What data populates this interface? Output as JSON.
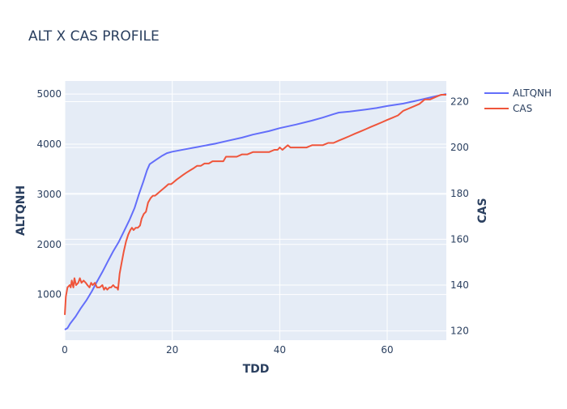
{
  "chart_data": {
    "type": "line",
    "title": "ALT X CAS PROFILE",
    "xlabel": "TDD",
    "ylabel": "ALTQNH",
    "y2label": "CAS",
    "xlim": [
      0,
      71
    ],
    "ylim": [
      90,
      5260
    ],
    "y2lim": [
      116,
      229
    ],
    "x_ticks": [
      "0",
      "20",
      "40",
      "60"
    ],
    "y_ticks": [
      "1000",
      "2000",
      "3000",
      "4000",
      "5000"
    ],
    "y2_ticks": [
      "120",
      "140",
      "160",
      "180",
      "200",
      "220"
    ],
    "grid": true,
    "legend_position": "top-right",
    "series": [
      {
        "name": "ALTQNH",
        "axis": "y",
        "color": "#636efa",
        "points": [
          [
            0,
            300
          ],
          [
            0.5,
            330
          ],
          [
            1,
            420
          ],
          [
            2,
            560
          ],
          [
            3,
            730
          ],
          [
            4,
            880
          ],
          [
            5,
            1060
          ],
          [
            6,
            1260
          ],
          [
            7,
            1450
          ],
          [
            8,
            1660
          ],
          [
            9,
            1860
          ],
          [
            10,
            2040
          ],
          [
            11,
            2260
          ],
          [
            12,
            2480
          ],
          [
            13,
            2730
          ],
          [
            13.8,
            3000
          ],
          [
            14.6,
            3250
          ],
          [
            15.3,
            3480
          ],
          [
            15.8,
            3600
          ],
          [
            17,
            3690
          ],
          [
            18,
            3760
          ],
          [
            19,
            3820
          ],
          [
            20,
            3850
          ],
          [
            22,
            3890
          ],
          [
            25,
            3950
          ],
          [
            28,
            4010
          ],
          [
            30,
            4060
          ],
          [
            33,
            4130
          ],
          [
            35,
            4190
          ],
          [
            38,
            4260
          ],
          [
            40,
            4320
          ],
          [
            43,
            4390
          ],
          [
            46,
            4470
          ],
          [
            48,
            4530
          ],
          [
            50,
            4600
          ],
          [
            51,
            4630
          ],
          [
            53,
            4650
          ],
          [
            56,
            4690
          ],
          [
            58,
            4720
          ],
          [
            60,
            4760
          ],
          [
            63,
            4810
          ],
          [
            66,
            4880
          ],
          [
            68,
            4930
          ],
          [
            70,
            4980
          ],
          [
            71,
            5000
          ]
        ]
      },
      {
        "name": "CAS",
        "axis": "y2",
        "color": "#ef553b",
        "points": [
          [
            0,
            127
          ],
          [
            0.2,
            135
          ],
          [
            0.5,
            139
          ],
          [
            0.9,
            140
          ],
          [
            1.1,
            139
          ],
          [
            1.3,
            142
          ],
          [
            1.6,
            139
          ],
          [
            1.8,
            143
          ],
          [
            2.1,
            140
          ],
          [
            2.5,
            141
          ],
          [
            2.8,
            143
          ],
          [
            3.1,
            141
          ],
          [
            3.5,
            142
          ],
          [
            3.9,
            141
          ],
          [
            4.2,
            140
          ],
          [
            4.6,
            139
          ],
          [
            4.9,
            141
          ],
          [
            5.2,
            140
          ],
          [
            5.6,
            141
          ],
          [
            6,
            139
          ],
          [
            6.5,
            139
          ],
          [
            7,
            140
          ],
          [
            7.3,
            138
          ],
          [
            7.6,
            139
          ],
          [
            7.9,
            138
          ],
          [
            8.3,
            139
          ],
          [
            8.6,
            139
          ],
          [
            9,
            140
          ],
          [
            9.4,
            139
          ],
          [
            9.7,
            139
          ],
          [
            9.9,
            138
          ],
          [
            10.2,
            145
          ],
          [
            10.6,
            150
          ],
          [
            11,
            155
          ],
          [
            11.4,
            159
          ],
          [
            11.8,
            162
          ],
          [
            12.2,
            164
          ],
          [
            12.5,
            165
          ],
          [
            12.8,
            164
          ],
          [
            13.2,
            165
          ],
          [
            13.6,
            165
          ],
          [
            14,
            166
          ],
          [
            14.3,
            169
          ],
          [
            14.7,
            171
          ],
          [
            15.1,
            172
          ],
          [
            15.5,
            176
          ],
          [
            16,
            178
          ],
          [
            16.4,
            179
          ],
          [
            16.8,
            179
          ],
          [
            17.3,
            180
          ],
          [
            17.8,
            181
          ],
          [
            18.3,
            182
          ],
          [
            18.8,
            183
          ],
          [
            19.3,
            184
          ],
          [
            19.8,
            184
          ],
          [
            20.3,
            185
          ],
          [
            20.8,
            186
          ],
          [
            21.4,
            187
          ],
          [
            22,
            188
          ],
          [
            22.6,
            189
          ],
          [
            23.3,
            190
          ],
          [
            24,
            191
          ],
          [
            24.6,
            192
          ],
          [
            25.3,
            192
          ],
          [
            26,
            193
          ],
          [
            26.8,
            193
          ],
          [
            27.5,
            194
          ],
          [
            28.5,
            194
          ],
          [
            29.5,
            194
          ],
          [
            30,
            196
          ],
          [
            31,
            196
          ],
          [
            32,
            196
          ],
          [
            33,
            197
          ],
          [
            34,
            197
          ],
          [
            35,
            198
          ],
          [
            36,
            198
          ],
          [
            37,
            198
          ],
          [
            38,
            198
          ],
          [
            39,
            199
          ],
          [
            39.6,
            199
          ],
          [
            40,
            200
          ],
          [
            40.5,
            199
          ],
          [
            41,
            200
          ],
          [
            41.5,
            201
          ],
          [
            42,
            200
          ],
          [
            43,
            200
          ],
          [
            44,
            200
          ],
          [
            45,
            200
          ],
          [
            46,
            201
          ],
          [
            47,
            201
          ],
          [
            48,
            201
          ],
          [
            49,
            202
          ],
          [
            50,
            202
          ],
          [
            51,
            203
          ],
          [
            52,
            204
          ],
          [
            53,
            205
          ],
          [
            54,
            206
          ],
          [
            55,
            207
          ],
          [
            56,
            208
          ],
          [
            57,
            209
          ],
          [
            58,
            210
          ],
          [
            59,
            211
          ],
          [
            60,
            212
          ],
          [
            61,
            213
          ],
          [
            62,
            214
          ],
          [
            63,
            216
          ],
          [
            64,
            217
          ],
          [
            65,
            218
          ],
          [
            66,
            219
          ],
          [
            67,
            221
          ],
          [
            68,
            221
          ],
          [
            69,
            222
          ],
          [
            70,
            223
          ],
          [
            71,
            223
          ]
        ]
      }
    ]
  }
}
